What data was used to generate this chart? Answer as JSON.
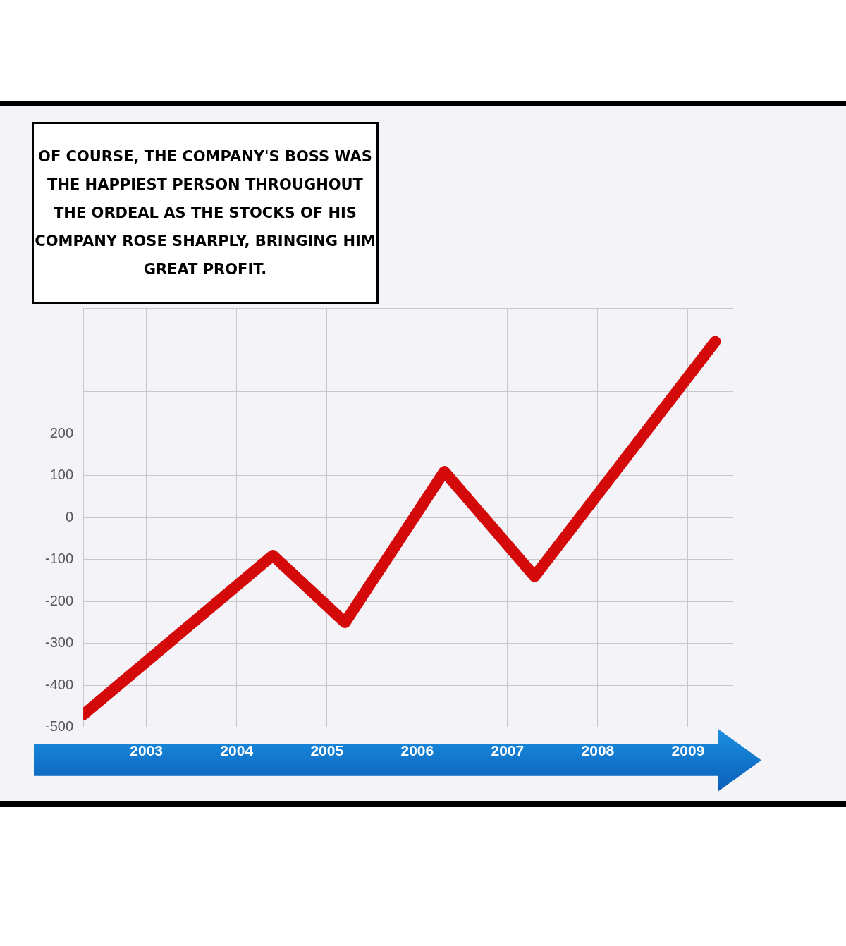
{
  "chart_data": {
    "type": "line",
    "annotations": [
      "OF COURSE, THE COMPANY'S BOSS WAS THE HAPPIEST PERSON THROUGHOUT THE ORDEAL AS THE STOCKS OF HIS COMPANY ROSE SHARPLY, BRINGING HIM GREAT PROFIT."
    ],
    "x": [
      2002.3,
      2004.4,
      2005.2,
      2006.3,
      2007.3,
      2009.3
    ],
    "series": [
      {
        "color": "#d40a0a",
        "values": [
          -470,
          -90,
          -250,
          110,
          -140,
          420
        ]
      }
    ],
    "xlim": [
      2002.3,
      2009.5
    ],
    "xticks": [
      2003,
      2004,
      2005,
      2006,
      2007,
      2008,
      2009
    ],
    "ylim": [
      -500,
      500
    ],
    "yticks": [
      -500,
      -400,
      -300,
      -200,
      -100,
      0,
      100,
      200,
      {
        "value": 300,
        "label": null
      },
      {
        "value": 400,
        "label": null
      },
      {
        "value": 500,
        "label": null
      }
    ],
    "grid": true,
    "legend": false,
    "marker": "none",
    "line_style": "solid"
  }
}
